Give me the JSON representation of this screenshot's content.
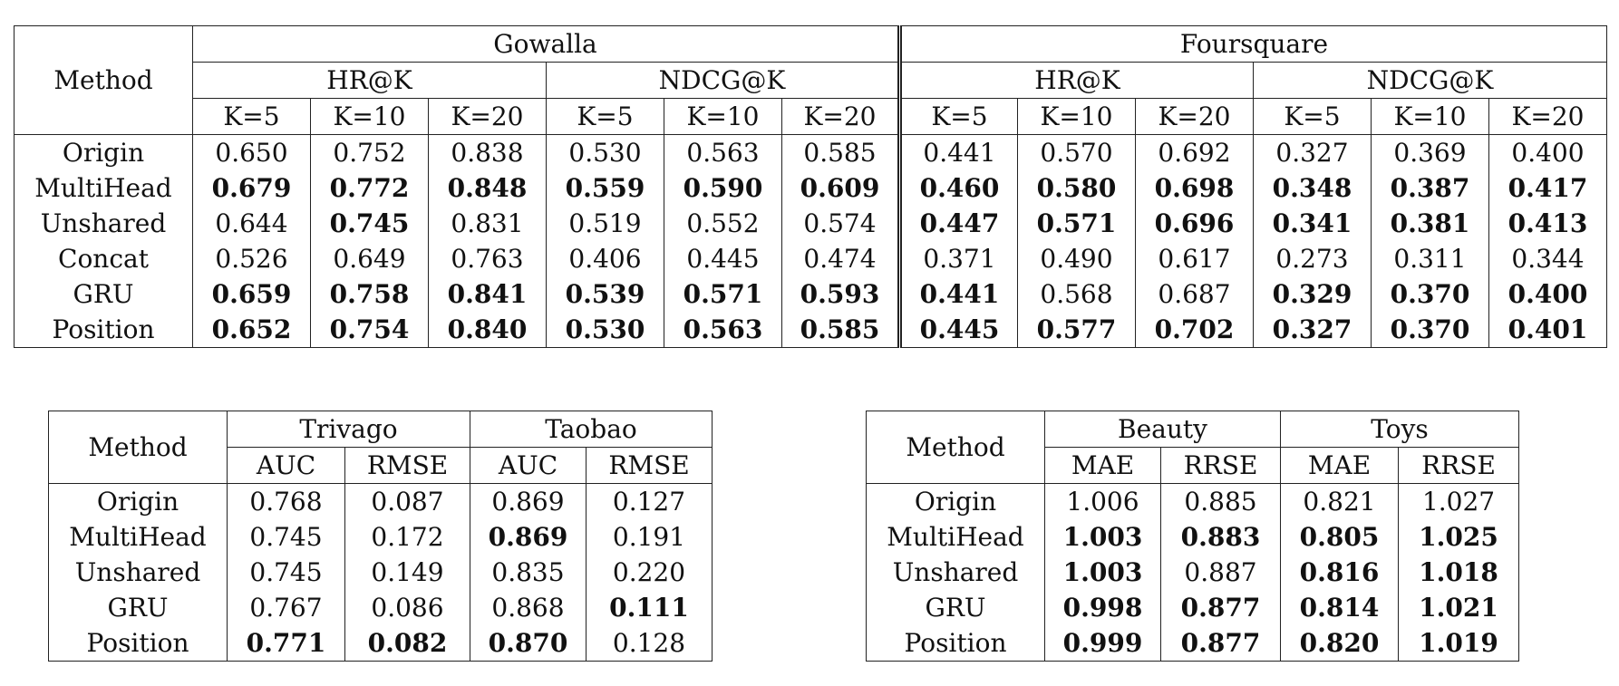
{
  "table_main": {
    "method_label": "Method",
    "datasets": [
      "Gowalla",
      "Foursquare"
    ],
    "metrics": [
      "HR@K",
      "NDCG@K",
      "HR@K",
      "NDCG@K"
    ],
    "ks": [
      "K=5",
      "K=10",
      "K=20",
      "K=5",
      "K=10",
      "K=20",
      "K=5",
      "K=10",
      "K=20",
      "K=5",
      "K=10",
      "K=20"
    ],
    "rows": [
      {
        "method": "Origin",
        "values": [
          "0.650",
          "0.752",
          "0.838",
          "0.530",
          "0.563",
          "0.585",
          "0.441",
          "0.570",
          "0.692",
          "0.327",
          "0.369",
          "0.400"
        ],
        "bold": [
          false,
          false,
          false,
          false,
          false,
          false,
          false,
          false,
          false,
          false,
          false,
          false
        ]
      },
      {
        "method": "MultiHead",
        "values": [
          "0.679",
          "0.772",
          "0.848",
          "0.559",
          "0.590",
          "0.609",
          "0.460",
          "0.580",
          "0.698",
          "0.348",
          "0.387",
          "0.417"
        ],
        "bold": [
          true,
          true,
          true,
          true,
          true,
          true,
          true,
          true,
          true,
          true,
          true,
          true
        ]
      },
      {
        "method": "Unshared",
        "values": [
          "0.644",
          "0.745",
          "0.831",
          "0.519",
          "0.552",
          "0.574",
          "0.447",
          "0.571",
          "0.696",
          "0.341",
          "0.381",
          "0.413"
        ],
        "bold": [
          false,
          true,
          false,
          false,
          false,
          false,
          true,
          true,
          true,
          true,
          true,
          true
        ]
      },
      {
        "method": "Concat",
        "values": [
          "0.526",
          "0.649",
          "0.763",
          "0.406",
          "0.445",
          "0.474",
          "0.371",
          "0.490",
          "0.617",
          "0.273",
          "0.311",
          "0.344"
        ],
        "bold": [
          false,
          false,
          false,
          false,
          false,
          false,
          false,
          false,
          false,
          false,
          false,
          false
        ]
      },
      {
        "method": "GRU",
        "values": [
          "0.659",
          "0.758",
          "0.841",
          "0.539",
          "0.571",
          "0.593",
          "0.441",
          "0.568",
          "0.687",
          "0.329",
          "0.370",
          "0.400"
        ],
        "bold": [
          true,
          true,
          true,
          true,
          true,
          true,
          true,
          false,
          false,
          true,
          true,
          true
        ]
      },
      {
        "method": "Position",
        "values": [
          "0.652",
          "0.754",
          "0.840",
          "0.530",
          "0.563",
          "0.585",
          "0.445",
          "0.577",
          "0.702",
          "0.327",
          "0.370",
          "0.401"
        ],
        "bold": [
          true,
          true,
          true,
          true,
          true,
          true,
          true,
          true,
          true,
          true,
          true,
          true
        ]
      }
    ]
  },
  "table_left": {
    "method_label": "Method",
    "datasets": [
      "Trivago",
      "Taobao"
    ],
    "metrics": [
      "AUC",
      "RMSE",
      "AUC",
      "RMSE"
    ],
    "rows": [
      {
        "method": "Origin",
        "values": [
          "0.768",
          "0.087",
          "0.869",
          "0.127"
        ],
        "bold": [
          false,
          false,
          false,
          false
        ]
      },
      {
        "method": "MultiHead",
        "values": [
          "0.745",
          "0.172",
          "0.869",
          "0.191"
        ],
        "bold": [
          false,
          false,
          true,
          false
        ]
      },
      {
        "method": "Unshared",
        "values": [
          "0.745",
          "0.149",
          "0.835",
          "0.220"
        ],
        "bold": [
          false,
          false,
          false,
          false
        ]
      },
      {
        "method": "GRU",
        "values": [
          "0.767",
          "0.086",
          "0.868",
          "0.111"
        ],
        "bold": [
          false,
          false,
          false,
          true
        ]
      },
      {
        "method": "Position",
        "values": [
          "0.771",
          "0.082",
          "0.870",
          "0.128"
        ],
        "bold": [
          true,
          true,
          true,
          false
        ]
      }
    ]
  },
  "table_right": {
    "method_label": "Method",
    "datasets": [
      "Beauty",
      "Toys"
    ],
    "metrics": [
      "MAE",
      "RRSE",
      "MAE",
      "RRSE"
    ],
    "rows": [
      {
        "method": "Origin",
        "values": [
          "1.006",
          "0.885",
          "0.821",
          "1.027"
        ],
        "bold": [
          false,
          false,
          false,
          false
        ]
      },
      {
        "method": "MultiHead",
        "values": [
          "1.003",
          "0.883",
          "0.805",
          "1.025"
        ],
        "bold": [
          true,
          true,
          true,
          true
        ]
      },
      {
        "method": "Unshared",
        "values": [
          "1.003",
          "0.887",
          "0.816",
          "1.018"
        ],
        "bold": [
          true,
          false,
          true,
          true
        ]
      },
      {
        "method": "GRU",
        "values": [
          "0.998",
          "0.877",
          "0.814",
          "1.021"
        ],
        "bold": [
          true,
          true,
          true,
          true
        ]
      },
      {
        "method": "Position",
        "values": [
          "0.999",
          "0.877",
          "0.820",
          "1.019"
        ],
        "bold": [
          true,
          true,
          true,
          true
        ]
      }
    ]
  }
}
